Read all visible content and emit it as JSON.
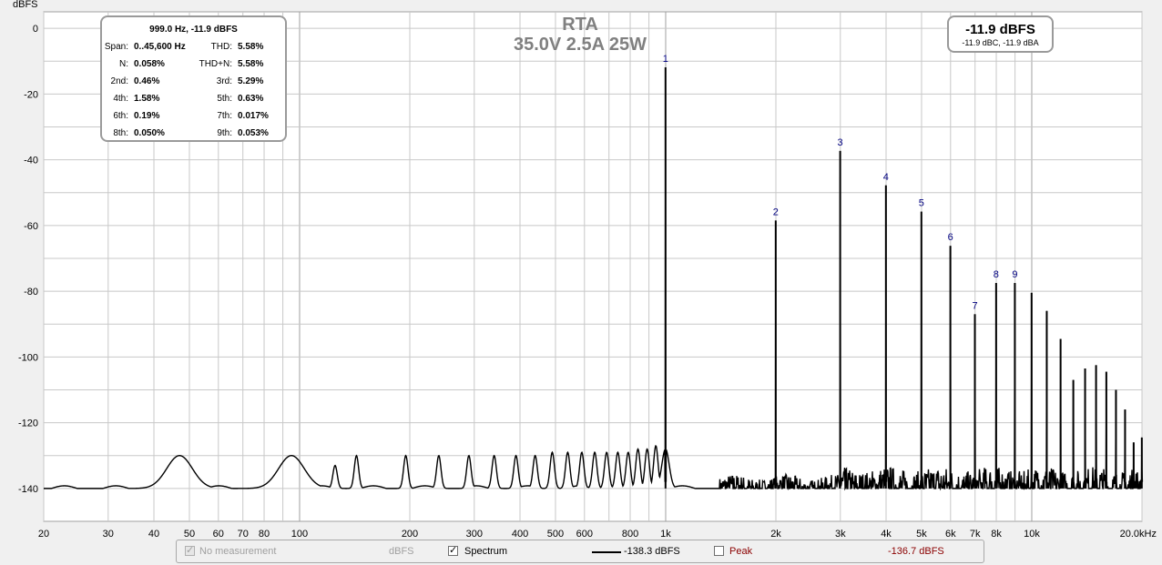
{
  "chart_data": {
    "type": "line",
    "title": "RTA",
    "subtitle": "35.0V 2.5A 25W",
    "ylabel": "dBFS",
    "xlabel": "",
    "x_scale": "log",
    "xlim": [
      20,
      20000
    ],
    "ylim": [
      -150,
      5
    ],
    "grid": true,
    "x_ticks": [
      {
        "v": 20,
        "label": "20"
      },
      {
        "v": 30,
        "label": "30"
      },
      {
        "v": 40,
        "label": "40"
      },
      {
        "v": 50,
        "label": "50"
      },
      {
        "v": 60,
        "label": "60"
      },
      {
        "v": 70,
        "label": "70"
      },
      {
        "v": 80,
        "label": "80"
      },
      {
        "v": 100,
        "label": "100"
      },
      {
        "v": 200,
        "label": "200"
      },
      {
        "v": 300,
        "label": "300"
      },
      {
        "v": 400,
        "label": "400"
      },
      {
        "v": 500,
        "label": "500"
      },
      {
        "v": 600,
        "label": "600"
      },
      {
        "v": 800,
        "label": "800"
      },
      {
        "v": 1000,
        "label": "1k"
      },
      {
        "v": 2000,
        "label": "2k"
      },
      {
        "v": 3000,
        "label": "3k"
      },
      {
        "v": 4000,
        "label": "4k"
      },
      {
        "v": 5000,
        "label": "5k"
      },
      {
        "v": 6000,
        "label": "6k"
      },
      {
        "v": 7000,
        "label": "7k"
      },
      {
        "v": 8000,
        "label": "8k"
      },
      {
        "v": 10000,
        "label": "10k"
      },
      {
        "v": 20000,
        "label": "20.0kHz"
      }
    ],
    "y_ticks": [
      0,
      -20,
      -40,
      -60,
      -80,
      -100,
      -120,
      -140
    ],
    "series": [
      {
        "name": "Spectrum",
        "color": "#000000",
        "noise_floor_dbfs": -140,
        "harmonics": [
          {
            "n": "1",
            "f": 999,
            "db": -11.9
          },
          {
            "n": "2",
            "f": 1998,
            "db": -58.5
          },
          {
            "n": "3",
            "f": 2997,
            "db": -37.3
          },
          {
            "n": "4",
            "f": 3996,
            "db": -47.8
          },
          {
            "n": "5",
            "f": 4995,
            "db": -55.8
          },
          {
            "n": "6",
            "f": 5994,
            "db": -66.2
          },
          {
            "n": "7",
            "f": 6993,
            "db": -87.0
          },
          {
            "n": "8",
            "f": 7992,
            "db": -77.5
          },
          {
            "n": "9",
            "f": 8991,
            "db": -77.5
          },
          {
            "n": "",
            "f": 9990,
            "db": -80.5
          },
          {
            "n": "",
            "f": 10989,
            "db": -86.0
          },
          {
            "n": "",
            "f": 11988,
            "db": -94.5
          },
          {
            "n": "",
            "f": 12987,
            "db": -107.0
          },
          {
            "n": "",
            "f": 13986,
            "db": -103.5
          },
          {
            "n": "",
            "f": 14985,
            "db": -102.5
          },
          {
            "n": "",
            "f": 15984,
            "db": -104.5
          },
          {
            "n": "",
            "f": 16983,
            "db": -110.0
          },
          {
            "n": "",
            "f": 17982,
            "db": -116.0
          },
          {
            "n": "",
            "f": 18981,
            "db": -126.0
          },
          {
            "n": "",
            "f": 19980,
            "db": -124.5
          }
        ],
        "low_freq_bumps": [
          {
            "f": 47,
            "db": -130
          },
          {
            "f": 95,
            "db": -130
          },
          {
            "f": 125,
            "db": -133
          },
          {
            "f": 143,
            "db": -130
          },
          {
            "f": 195,
            "db": -130
          },
          {
            "f": 240,
            "db": -130
          },
          {
            "f": 290,
            "db": -130
          },
          {
            "f": 340,
            "db": -130
          },
          {
            "f": 390,
            "db": -130
          },
          {
            "f": 440,
            "db": -130
          },
          {
            "f": 490,
            "db": -129
          },
          {
            "f": 540,
            "db": -129
          },
          {
            "f": 590,
            "db": -129
          },
          {
            "f": 640,
            "db": -129
          },
          {
            "f": 690,
            "db": -129
          },
          {
            "f": 740,
            "db": -129
          },
          {
            "f": 790,
            "db": -129
          },
          {
            "f": 840,
            "db": -128
          },
          {
            "f": 890,
            "db": -128
          },
          {
            "f": 940,
            "db": -127
          }
        ]
      }
    ]
  },
  "info_box": {
    "header": "999.0 Hz, -11.9 dBFS",
    "rows": [
      {
        "l1": "Span:",
        "v1": "0..45,600 Hz",
        "l2": "THD:",
        "v2": "5.58%"
      },
      {
        "l1": "N:",
        "v1": "0.058%",
        "l2": "THD+N:",
        "v2": "5.58%"
      },
      {
        "l1": "2nd:",
        "v1": "0.46%",
        "l2": "3rd:",
        "v2": "5.29%"
      },
      {
        "l1": "4th:",
        "v1": "1.58%",
        "l2": "5th:",
        "v2": "0.63%"
      },
      {
        "l1": "6th:",
        "v1": "0.19%",
        "l2": "7th:",
        "v2": "0.017%"
      },
      {
        "l1": "8th:",
        "v1": "0.050%",
        "l2": "9th:",
        "v2": "0.053%"
      }
    ]
  },
  "peak_box": {
    "main": "-11.9 dBFS",
    "sub": "-11.9 dBC, -11.9 dBA"
  },
  "legend": {
    "no_measurement": {
      "label": "No measurement",
      "unit": "dBFS",
      "checked": true,
      "enabled": false
    },
    "spectrum": {
      "label": "Spectrum",
      "value": "-138.3 dBFS",
      "checked": true,
      "color": "#000000"
    },
    "peak": {
      "label": "Peak",
      "value": "-136.7 dBFS",
      "checked": false,
      "color": "#8b0000"
    }
  },
  "colors": {
    "plot_bg": "#ffffff",
    "grid": "#c8c8c8",
    "grid_major": "#a0a0a0",
    "harmonic_label": "#000080",
    "title": "#808080"
  }
}
